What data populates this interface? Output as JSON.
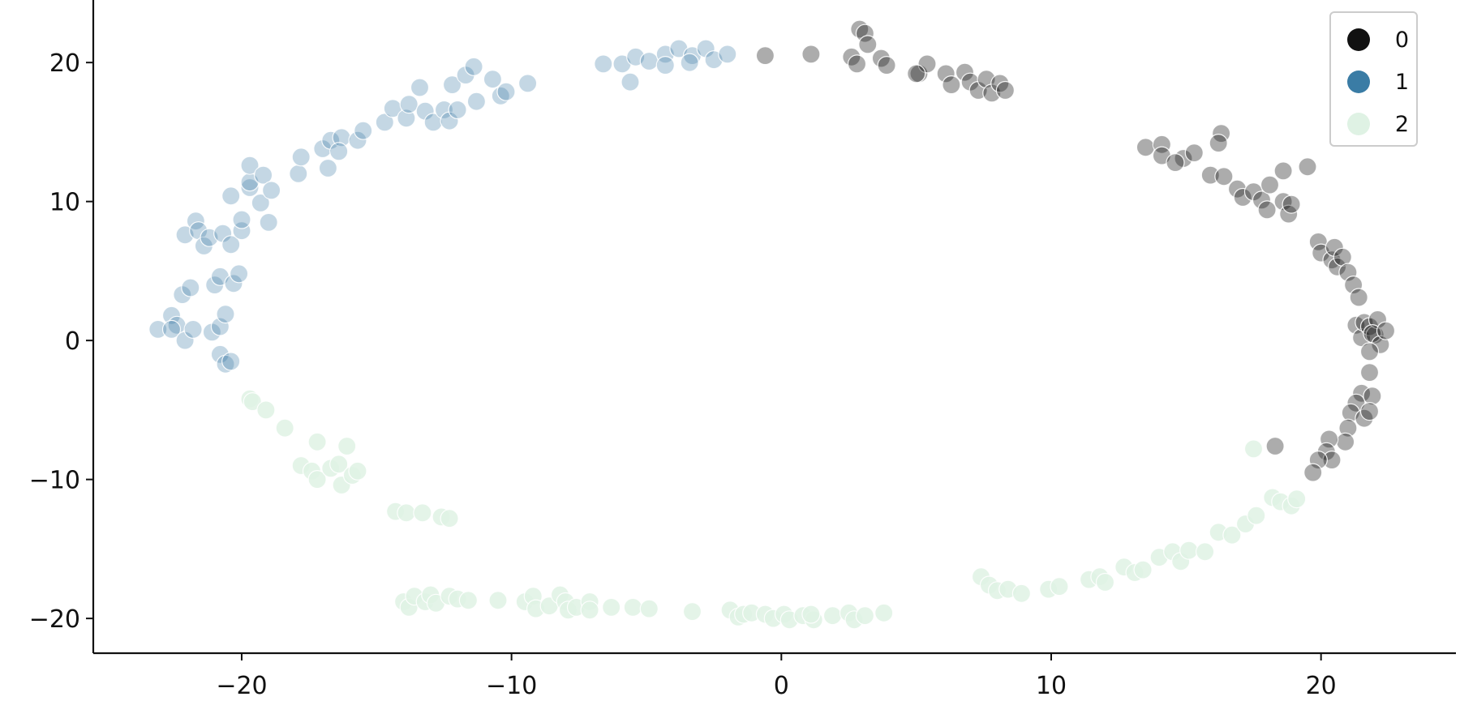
{
  "chart_data": {
    "type": "scatter",
    "title": "",
    "xlabel": "",
    "ylabel": "",
    "xlim": [
      -25.5,
      25
    ],
    "ylim": [
      -22.5,
      24.5
    ],
    "xticks": [
      -20,
      -10,
      0,
      10,
      20
    ],
    "yticks": [
      -20,
      -10,
      0,
      10,
      20
    ],
    "xtick_labels": [
      "−20",
      "−10",
      "0",
      "10",
      "20"
    ],
    "ytick_labels": [
      "−20",
      "−10",
      "0",
      "10",
      "20"
    ],
    "grid": false,
    "legend_position": "top-right",
    "legend": [
      {
        "label": "0",
        "color": "#111111"
      },
      {
        "label": "1",
        "color": "#3a7ca5"
      },
      {
        "label": "2",
        "color": "#dff2e4"
      }
    ],
    "series": [
      {
        "name": "0",
        "color": "#111111",
        "opacity": 0.35,
        "points": [
          [
            -0.6,
            20.5
          ],
          [
            1.1,
            20.6
          ],
          [
            2.9,
            22.4
          ],
          [
            3.1,
            22.1
          ],
          [
            3.2,
            21.3
          ],
          [
            2.6,
            20.4
          ],
          [
            2.8,
            19.9
          ],
          [
            3.7,
            20.3
          ],
          [
            3.9,
            19.8
          ],
          [
            5.1,
            19.2
          ],
          [
            5.4,
            19.9
          ],
          [
            5.0,
            19.2
          ],
          [
            6.1,
            19.2
          ],
          [
            6.3,
            18.4
          ],
          [
            6.8,
            19.3
          ],
          [
            7.0,
            18.6
          ],
          [
            7.3,
            18.0
          ],
          [
            7.6,
            18.8
          ],
          [
            7.8,
            17.8
          ],
          [
            8.1,
            18.5
          ],
          [
            8.3,
            18.0
          ],
          [
            13.5,
            13.9
          ],
          [
            14.1,
            14.1
          ],
          [
            14.1,
            13.3
          ],
          [
            14.9,
            13.1
          ],
          [
            14.6,
            12.8
          ],
          [
            15.3,
            13.5
          ],
          [
            15.9,
            11.9
          ],
          [
            16.3,
            14.9
          ],
          [
            16.2,
            14.2
          ],
          [
            16.4,
            11.8
          ],
          [
            16.9,
            10.9
          ],
          [
            17.1,
            10.3
          ],
          [
            17.5,
            10.7
          ],
          [
            17.8,
            10.1
          ],
          [
            18.1,
            11.2
          ],
          [
            18.0,
            9.4
          ],
          [
            18.6,
            12.2
          ],
          [
            18.6,
            10.0
          ],
          [
            18.8,
            9.1
          ],
          [
            18.9,
            9.8
          ],
          [
            19.5,
            12.5
          ],
          [
            19.9,
            7.1
          ],
          [
            20.0,
            6.3
          ],
          [
            20.4,
            5.8
          ],
          [
            20.5,
            6.7
          ],
          [
            20.6,
            5.3
          ],
          [
            20.8,
            6.0
          ],
          [
            21.0,
            4.9
          ],
          [
            21.2,
            4.0
          ],
          [
            21.4,
            3.1
          ],
          [
            21.3,
            1.1
          ],
          [
            21.5,
            0.2
          ],
          [
            21.6,
            1.3
          ],
          [
            21.8,
            1.0
          ],
          [
            22.0,
            0.4
          ],
          [
            22.1,
            1.5
          ],
          [
            21.9,
            0.5
          ],
          [
            22.2,
            -0.3
          ],
          [
            22.4,
            0.7
          ],
          [
            21.8,
            -0.8
          ],
          [
            21.8,
            -2.3
          ],
          [
            21.5,
            -3.8
          ],
          [
            21.3,
            -4.5
          ],
          [
            21.1,
            -5.2
          ],
          [
            21.6,
            -5.6
          ],
          [
            21.9,
            -4.0
          ],
          [
            21.8,
            -5.1
          ],
          [
            21.0,
            -6.3
          ],
          [
            20.9,
            -7.3
          ],
          [
            20.3,
            -7.1
          ],
          [
            20.2,
            -8.0
          ],
          [
            20.4,
            -8.6
          ],
          [
            19.9,
            -8.6
          ],
          [
            19.7,
            -9.5
          ],
          [
            18.3,
            -7.6
          ]
        ]
      },
      {
        "name": "1",
        "color": "#3a7ca5",
        "opacity": 0.3,
        "points": [
          [
            -23.1,
            0.8
          ],
          [
            -22.6,
            1.8
          ],
          [
            -22.4,
            1.1
          ],
          [
            -22.6,
            0.8
          ],
          [
            -22.2,
            3.3
          ],
          [
            -21.9,
            3.8
          ],
          [
            -22.1,
            0.0
          ],
          [
            -21.8,
            0.8
          ],
          [
            -21.1,
            0.6
          ],
          [
            -20.8,
            1.0
          ],
          [
            -20.6,
            1.9
          ],
          [
            -20.8,
            -1.0
          ],
          [
            -20.6,
            -1.7
          ],
          [
            -20.4,
            -1.5
          ],
          [
            -21.0,
            4.0
          ],
          [
            -20.8,
            4.6
          ],
          [
            -20.3,
            4.1
          ],
          [
            -20.1,
            4.8
          ],
          [
            -22.1,
            7.6
          ],
          [
            -21.7,
            8.6
          ],
          [
            -21.6,
            7.9
          ],
          [
            -21.4,
            6.8
          ],
          [
            -21.2,
            7.4
          ],
          [
            -20.7,
            7.7
          ],
          [
            -20.4,
            6.9
          ],
          [
            -20.0,
            7.9
          ],
          [
            -20.0,
            8.7
          ],
          [
            -20.4,
            10.4
          ],
          [
            -19.7,
            11.0
          ],
          [
            -19.7,
            11.4
          ],
          [
            -19.7,
            12.6
          ],
          [
            -19.2,
            11.9
          ],
          [
            -19.3,
            9.9
          ],
          [
            -19.0,
            8.5
          ],
          [
            -18.9,
            10.8
          ],
          [
            -17.9,
            12.0
          ],
          [
            -17.8,
            13.2
          ],
          [
            -17.0,
            13.8
          ],
          [
            -16.8,
            12.4
          ],
          [
            -16.7,
            14.4
          ],
          [
            -16.3,
            14.6
          ],
          [
            -16.4,
            13.6
          ],
          [
            -15.7,
            14.4
          ],
          [
            -15.5,
            15.1
          ],
          [
            -14.7,
            15.7
          ],
          [
            -14.4,
            16.7
          ],
          [
            -13.9,
            16.0
          ],
          [
            -13.8,
            17.0
          ],
          [
            -13.4,
            18.2
          ],
          [
            -13.2,
            16.5
          ],
          [
            -12.9,
            15.7
          ],
          [
            -12.5,
            16.6
          ],
          [
            -12.3,
            15.8
          ],
          [
            -12.0,
            16.6
          ],
          [
            -12.2,
            18.4
          ],
          [
            -11.7,
            19.1
          ],
          [
            -11.4,
            19.7
          ],
          [
            -11.3,
            17.2
          ],
          [
            -10.7,
            18.8
          ],
          [
            -10.4,
            17.6
          ],
          [
            -10.2,
            17.9
          ],
          [
            -9.4,
            18.5
          ],
          [
            -6.6,
            19.9
          ],
          [
            -5.9,
            19.9
          ],
          [
            -5.6,
            18.6
          ],
          [
            -5.4,
            20.4
          ],
          [
            -4.9,
            20.1
          ],
          [
            -4.3,
            20.6
          ],
          [
            -4.3,
            19.8
          ],
          [
            -3.8,
            21.0
          ],
          [
            -3.3,
            20.5
          ],
          [
            -3.4,
            20.0
          ],
          [
            -2.8,
            21.0
          ],
          [
            -2.5,
            20.2
          ],
          [
            -2.0,
            20.6
          ]
        ]
      },
      {
        "name": "2",
        "color": "#dff2e4",
        "opacity": 0.85,
        "points": [
          [
            -19.7,
            -4.2
          ],
          [
            -19.6,
            -4.4
          ],
          [
            -19.1,
            -5.0
          ],
          [
            -18.4,
            -6.3
          ],
          [
            -17.2,
            -7.3
          ],
          [
            -17.8,
            -9.0
          ],
          [
            -17.4,
            -9.4
          ],
          [
            -17.2,
            -10.0
          ],
          [
            -16.7,
            -9.2
          ],
          [
            -16.4,
            -8.9
          ],
          [
            -16.1,
            -7.6
          ],
          [
            -16.3,
            -10.4
          ],
          [
            -15.9,
            -9.7
          ],
          [
            -15.7,
            -9.4
          ],
          [
            -14.3,
            -12.3
          ],
          [
            -13.9,
            -12.4
          ],
          [
            -13.3,
            -12.4
          ],
          [
            -12.6,
            -12.7
          ],
          [
            -12.3,
            -12.8
          ],
          [
            -14.0,
            -18.8
          ],
          [
            -13.8,
            -19.2
          ],
          [
            -13.6,
            -18.4
          ],
          [
            -13.2,
            -18.8
          ],
          [
            -13.0,
            -18.3
          ],
          [
            -12.8,
            -18.9
          ],
          [
            -12.3,
            -18.4
          ],
          [
            -12.0,
            -18.6
          ],
          [
            -11.6,
            -18.7
          ],
          [
            -10.5,
            -18.7
          ],
          [
            -9.5,
            -18.8
          ],
          [
            -9.2,
            -18.4
          ],
          [
            -9.1,
            -19.3
          ],
          [
            -8.6,
            -19.1
          ],
          [
            -8.2,
            -18.3
          ],
          [
            -8.0,
            -18.8
          ],
          [
            -7.9,
            -19.4
          ],
          [
            -7.6,
            -19.2
          ],
          [
            -7.1,
            -18.8
          ],
          [
            -7.1,
            -19.4
          ],
          [
            -6.3,
            -19.2
          ],
          [
            -5.5,
            -19.2
          ],
          [
            -4.9,
            -19.3
          ],
          [
            -3.3,
            -19.5
          ],
          [
            -1.9,
            -19.4
          ],
          [
            -1.6,
            -19.9
          ],
          [
            -1.4,
            -19.7
          ],
          [
            -1.1,
            -19.6
          ],
          [
            -0.6,
            -19.7
          ],
          [
            -0.3,
            -20.0
          ],
          [
            0.1,
            -19.7
          ],
          [
            0.3,
            -20.1
          ],
          [
            0.8,
            -19.8
          ],
          [
            1.2,
            -20.1
          ],
          [
            1.1,
            -19.7
          ],
          [
            1.9,
            -19.8
          ],
          [
            2.5,
            -19.6
          ],
          [
            2.7,
            -20.1
          ],
          [
            3.1,
            -19.8
          ],
          [
            3.8,
            -19.6
          ],
          [
            7.4,
            -17.0
          ],
          [
            7.7,
            -17.6
          ],
          [
            8.0,
            -18.0
          ],
          [
            8.4,
            -17.9
          ],
          [
            8.9,
            -18.2
          ],
          [
            9.9,
            -17.9
          ],
          [
            10.3,
            -17.7
          ],
          [
            11.4,
            -17.2
          ],
          [
            11.8,
            -17.0
          ],
          [
            12.0,
            -17.4
          ],
          [
            12.7,
            -16.3
          ],
          [
            13.1,
            -16.7
          ],
          [
            13.4,
            -16.5
          ],
          [
            14.0,
            -15.6
          ],
          [
            14.5,
            -15.2
          ],
          [
            14.8,
            -15.9
          ],
          [
            15.1,
            -15.1
          ],
          [
            15.7,
            -15.2
          ],
          [
            16.2,
            -13.8
          ],
          [
            16.7,
            -14.0
          ],
          [
            17.2,
            -13.2
          ],
          [
            17.6,
            -12.6
          ],
          [
            18.2,
            -11.3
          ],
          [
            18.5,
            -11.6
          ],
          [
            18.9,
            -11.9
          ],
          [
            19.1,
            -11.4
          ],
          [
            17.5,
            -7.8
          ]
        ]
      }
    ]
  }
}
